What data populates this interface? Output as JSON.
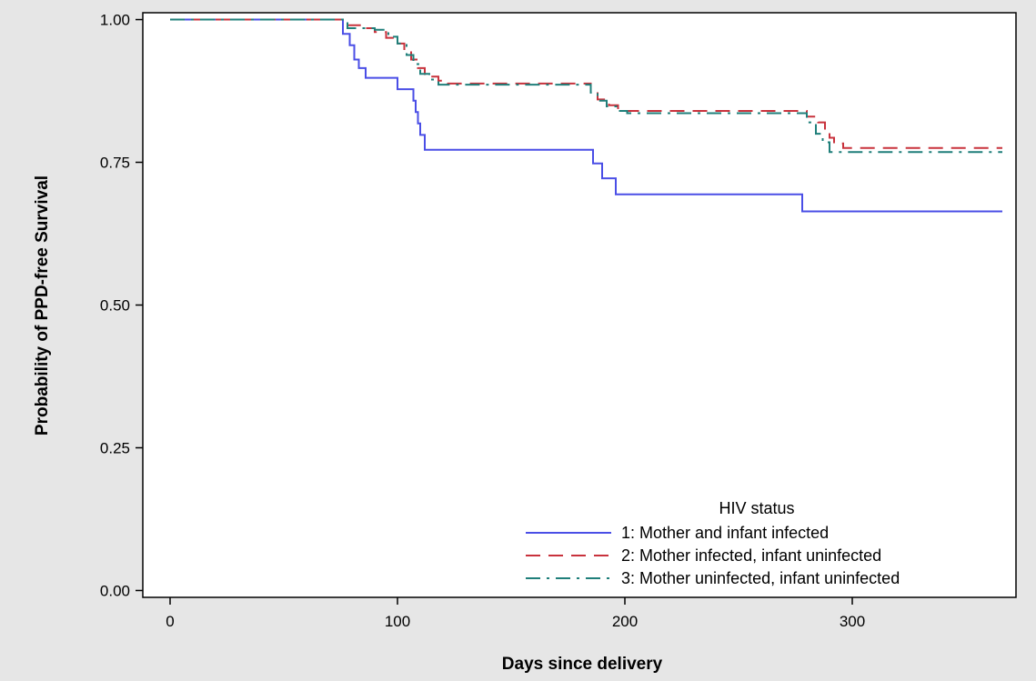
{
  "chart_data": {
    "type": "line",
    "step": true,
    "xlabel": "Days since delivery",
    "ylabel": "Probability of PPD-free Survival",
    "xlim": [
      -12,
      372
    ],
    "ylim": [
      -0.012,
      1.012
    ],
    "xticks": [
      0,
      100,
      200,
      300
    ],
    "yticks": [
      0.0,
      0.25,
      0.5,
      0.75,
      1.0
    ],
    "xtick_labels": [
      "0",
      "100",
      "200",
      "300"
    ],
    "ytick_labels": [
      "0.00",
      "0.25",
      "0.50",
      "0.75",
      "1.00"
    ],
    "grid": false,
    "legend": {
      "title": "HIV status",
      "placement": "bottom-right, inside plot"
    },
    "series": [
      {
        "name": "1: Mother and infant infected",
        "color": "#4a4ee6",
        "dash": "solid",
        "points": [
          [
            0,
            1.0
          ],
          [
            73,
            1.0
          ],
          [
            76,
            0.975
          ],
          [
            79,
            0.955
          ],
          [
            81,
            0.93
          ],
          [
            83,
            0.915
          ],
          [
            86,
            0.898
          ],
          [
            100,
            0.878
          ],
          [
            107,
            0.858
          ],
          [
            108,
            0.838
          ],
          [
            109,
            0.818
          ],
          [
            110,
            0.798
          ],
          [
            112,
            0.772
          ],
          [
            185,
            0.772
          ],
          [
            186,
            0.748
          ],
          [
            190,
            0.722
          ],
          [
            196,
            0.694
          ],
          [
            277,
            0.694
          ],
          [
            278,
            0.664
          ],
          [
            366,
            0.664
          ]
        ]
      },
      {
        "name": "2: Mother infected, infant uninfected",
        "color": "#c8323c",
        "dash": "long-dash",
        "points": [
          [
            0,
            1.0
          ],
          [
            73,
            1.0
          ],
          [
            78,
            0.99
          ],
          [
            85,
            0.985
          ],
          [
            90,
            0.978
          ],
          [
            95,
            0.968
          ],
          [
            100,
            0.958
          ],
          [
            103,
            0.945
          ],
          [
            106,
            0.93
          ],
          [
            109,
            0.915
          ],
          [
            112,
            0.9
          ],
          [
            118,
            0.893
          ],
          [
            122,
            0.888
          ],
          [
            182,
            0.888
          ],
          [
            185,
            0.875
          ],
          [
            188,
            0.86
          ],
          [
            193,
            0.85
          ],
          [
            197,
            0.843
          ],
          [
            200,
            0.84
          ],
          [
            276,
            0.84
          ],
          [
            280,
            0.83
          ],
          [
            285,
            0.82
          ],
          [
            288,
            0.805
          ],
          [
            290,
            0.793
          ],
          [
            292,
            0.783
          ],
          [
            296,
            0.775
          ],
          [
            366,
            0.775
          ]
        ]
      },
      {
        "name": "3: Mother uninfected, infant uninfected",
        "color": "#1f7f7a",
        "dash": "dash-dot",
        "points": [
          [
            0,
            1.0
          ],
          [
            73,
            1.0
          ],
          [
            78,
            0.985
          ],
          [
            90,
            0.982
          ],
          [
            96,
            0.97
          ],
          [
            100,
            0.958
          ],
          [
            104,
            0.938
          ],
          [
            107,
            0.922
          ],
          [
            110,
            0.905
          ],
          [
            114,
            0.895
          ],
          [
            118,
            0.886
          ],
          [
            181,
            0.886
          ],
          [
            185,
            0.872
          ],
          [
            188,
            0.858
          ],
          [
            192,
            0.848
          ],
          [
            197,
            0.84
          ],
          [
            201,
            0.836
          ],
          [
            275,
            0.836
          ],
          [
            280,
            0.82
          ],
          [
            284,
            0.8
          ],
          [
            287,
            0.785
          ],
          [
            290,
            0.768
          ],
          [
            366,
            0.768
          ]
        ]
      }
    ]
  }
}
